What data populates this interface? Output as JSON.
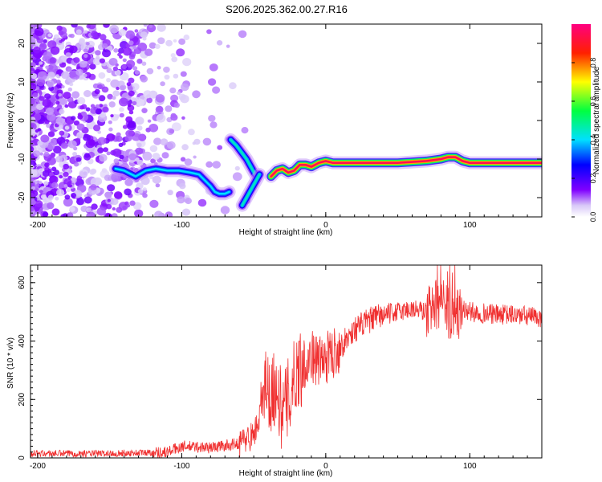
{
  "title": "S206.2025.362.00.27.R16",
  "chart_data": [
    {
      "type": "heatmap",
      "name": "spectrogram",
      "xlabel": "Height of straight line (km)",
      "ylabel": "Frequency (Hz)",
      "xlim": [
        -205,
        150
      ],
      "ylim": [
        -25,
        25
      ],
      "xticks": [
        -200,
        -100,
        0,
        100
      ],
      "yticks": [
        -20,
        -10,
        0,
        10,
        20
      ],
      "colorbar": {
        "label": "Normalized spectral amplitude",
        "range": [
          0,
          1
        ],
        "ticks": [
          0.0,
          0.2,
          0.4,
          0.6,
          0.8
        ],
        "tick_labels": [
          "0.0",
          "0.2",
          "0.4",
          "0.6",
          "0.8"
        ]
      },
      "ridges": [
        {
          "name": "carrier-left",
          "x": [
            -146,
            -140,
            -132,
            -125,
            -118,
            -110,
            -102,
            -94,
            -88,
            -84,
            -80,
            -77,
            -74,
            -70,
            -67
          ],
          "y": [
            -12.5,
            -13,
            -14.5,
            -13,
            -12.5,
            -13,
            -13,
            -13.5,
            -14,
            -15.5,
            -17,
            -18.5,
            -19,
            -19,
            -18.5
          ],
          "amp": 0.4
        },
        {
          "name": "carrier-right",
          "x": [
            -38,
            -34,
            -30,
            -26,
            -22,
            -18,
            -14,
            -10,
            -5,
            0,
            5,
            15,
            30,
            50,
            70,
            80,
            85,
            90,
            95,
            100,
            110,
            120,
            130,
            140,
            150
          ],
          "y": [
            -14.5,
            -13,
            -12.5,
            -13.5,
            -13,
            -11.5,
            -11.5,
            -12,
            -11,
            -10.5,
            -11,
            -11,
            -11,
            -11,
            -10.5,
            -10,
            -9.5,
            -9.5,
            -10.5,
            -11,
            -11,
            -11,
            -11,
            -11,
            -11
          ],
          "amp": 0.95
        },
        {
          "name": "branch-up",
          "x": [
            -66,
            -62,
            -58,
            -55,
            -52,
            -49
          ],
          "y": [
            -5,
            -6.5,
            -8.5,
            -10,
            -12,
            -14
          ],
          "amp": 0.45
        },
        {
          "name": "branch-down",
          "x": [
            -58,
            -55,
            -52,
            -49,
            -46
          ],
          "y": [
            -22,
            -20,
            -18,
            -16,
            -14
          ],
          "amp": 0.45
        }
      ]
    },
    {
      "type": "line",
      "name": "snr",
      "xlabel": "Height of straight line (km)",
      "ylabel": "SNR (10 * v/v)",
      "xlim": [
        -205,
        150
      ],
      "ylim": [
        0,
        660
      ],
      "xticks": [
        -200,
        -100,
        0,
        100
      ],
      "yticks": [
        0,
        200,
        400,
        600
      ],
      "color": "#f03030",
      "series": [
        {
          "name": "SNR",
          "x": [
            -205,
            -150,
            -110,
            -100,
            -80,
            -60,
            -50,
            -45,
            -42,
            -40,
            -38,
            -35,
            -30,
            -25,
            -20,
            -15,
            -10,
            -5,
            0,
            10,
            20,
            30,
            40,
            50,
            60,
            70,
            75,
            80,
            85,
            90,
            95,
            100,
            110,
            120,
            130,
            140,
            150
          ],
          "y": [
            15,
            15,
            20,
            40,
            35,
            50,
            80,
            150,
            300,
            250,
            220,
            250,
            150,
            220,
            300,
            320,
            350,
            330,
            340,
            380,
            440,
            470,
            490,
            500,
            510,
            500,
            520,
            530,
            500,
            480,
            510,
            500,
            495,
            490,
            490,
            485,
            480
          ]
        }
      ]
    }
  ]
}
